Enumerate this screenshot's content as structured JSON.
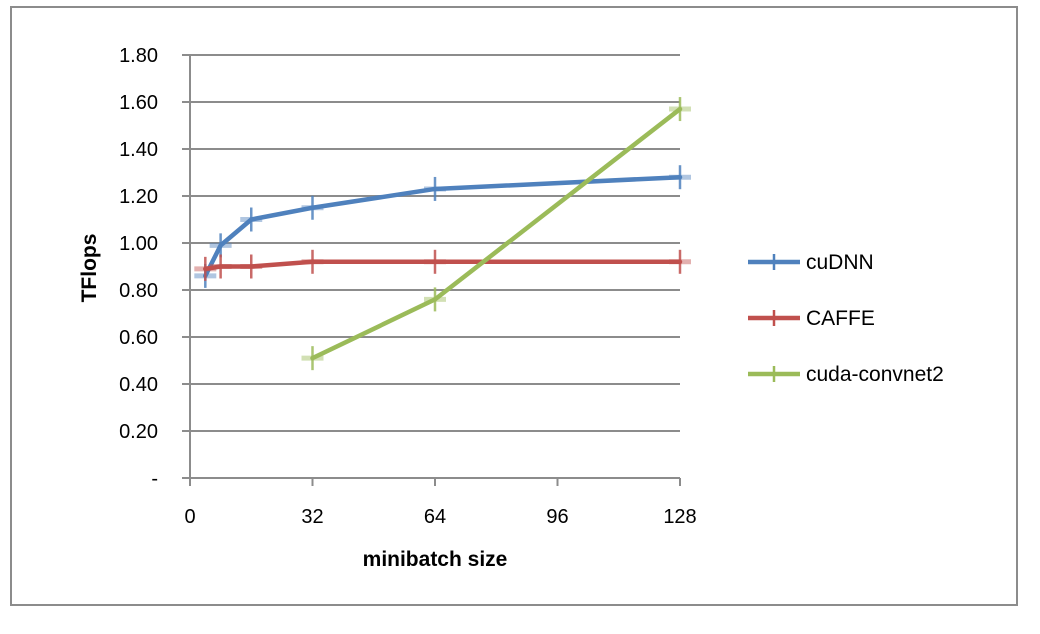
{
  "chart_data": {
    "type": "line",
    "title": "",
    "xlabel": "minibatch size",
    "ylabel": "TFlops",
    "xlim": [
      0,
      128
    ],
    "ylim": [
      0,
      1.8
    ],
    "x_ticks": [
      0,
      32,
      64,
      96,
      128
    ],
    "x_tick_labels": [
      "0",
      "32",
      "64",
      "96",
      "128"
    ],
    "y_ticks": [
      0,
      0.2,
      0.4,
      0.6,
      0.8,
      1.0,
      1.2,
      1.4,
      1.6,
      1.8
    ],
    "y_tick_labels": [
      "-",
      "0.20",
      "0.40",
      "0.60",
      "0.80",
      "1.00",
      "1.20",
      "1.40",
      "1.60",
      "1.80"
    ],
    "grid": "horizontal",
    "legend_position": "right",
    "series": [
      {
        "name": "cuDNN",
        "color": "#4f81bd",
        "x": [
          4,
          8,
          16,
          32,
          64,
          128
        ],
        "y": [
          0.86,
          0.99,
          1.1,
          1.15,
          1.23,
          1.28
        ]
      },
      {
        "name": "CAFFE",
        "color": "#c0504d",
        "x": [
          4,
          8,
          16,
          32,
          64,
          128
        ],
        "y": [
          0.89,
          0.9,
          0.9,
          0.92,
          0.92,
          0.92
        ]
      },
      {
        "name": "cuda-convnet2",
        "color": "#9bbb59",
        "x": [
          32,
          64,
          128
        ],
        "y": [
          0.51,
          0.76,
          1.57
        ]
      }
    ]
  }
}
